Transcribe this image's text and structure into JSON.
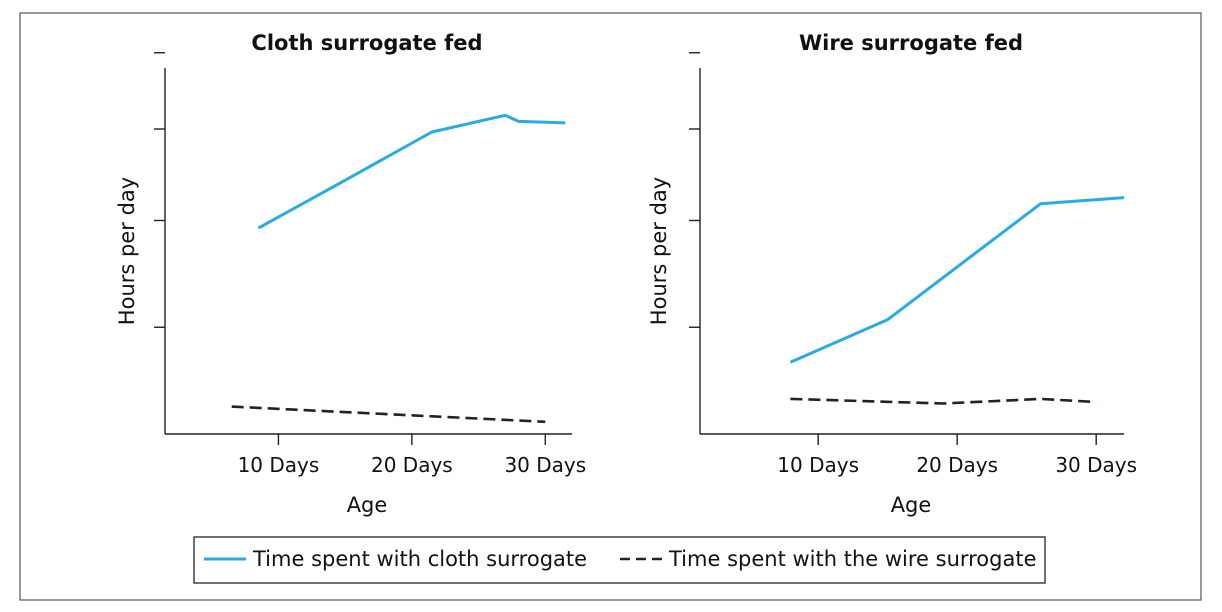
{
  "chart_data": [
    {
      "type": "line",
      "title": "Cloth surrogate fed",
      "xlabel": "Age",
      "ylabel": "Hours per day",
      "xlim": [
        1.5,
        32
      ],
      "ylim": [
        0,
        24
      ],
      "x_ticks": [
        {
          "value": 10,
          "label": "10 Days"
        },
        {
          "value": 20,
          "label": "20 Days"
        },
        {
          "value": 30,
          "label": "30 Days"
        }
      ],
      "y_ticks": [
        7,
        14,
        20,
        25
      ],
      "series": [
        {
          "name": "Time spent with cloth surrogate",
          "color": "#29abe2",
          "dash": "solid",
          "points": [
            [
              8.5,
              13.5
            ],
            [
              14.5,
              16.4
            ],
            [
              21.5,
              19.8
            ],
            [
              26.5,
              20.8
            ],
            [
              27.0,
              20.9
            ],
            [
              28.0,
              20.5
            ],
            [
              31.5,
              20.4
            ]
          ]
        },
        {
          "name": "Time spent with the wire surrogate",
          "color": "#222222",
          "dash": "dashed",
          "points": [
            [
              6.5,
              1.8
            ],
            [
              30.0,
              0.8
            ]
          ]
        }
      ]
    },
    {
      "type": "line",
      "title": "Wire surrogate fed",
      "xlabel": "Age",
      "ylabel": "Hours per day",
      "xlim": [
        1.5,
        32
      ],
      "ylim": [
        0,
        24
      ],
      "x_ticks": [
        {
          "value": 10,
          "label": "10 Days"
        },
        {
          "value": 20,
          "label": "20 Days"
        },
        {
          "value": 30,
          "label": "30 Days"
        }
      ],
      "y_ticks": [
        7,
        14,
        20,
        25
      ],
      "series": [
        {
          "name": "Time spent with cloth surrogate",
          "color": "#29abe2",
          "dash": "solid",
          "points": [
            [
              8.0,
              4.7
            ],
            [
              15.0,
              7.5
            ],
            [
              26.0,
              15.1
            ],
            [
              32.0,
              15.5
            ]
          ]
        },
        {
          "name": "Time spent with the wire surrogate",
          "color": "#222222",
          "dash": "dashed",
          "points": [
            [
              8.0,
              2.3
            ],
            [
              19.0,
              2.0
            ],
            [
              26.0,
              2.3
            ],
            [
              30.0,
              2.1
            ]
          ]
        }
      ]
    }
  ],
  "legend": {
    "position": "bottom",
    "items": [
      {
        "label": "Time spent with cloth surrogate",
        "color": "#29abe2",
        "dash": "solid"
      },
      {
        "label": "Time spent with the wire surrogate",
        "color": "#222222",
        "dash": "dashed"
      }
    ]
  }
}
